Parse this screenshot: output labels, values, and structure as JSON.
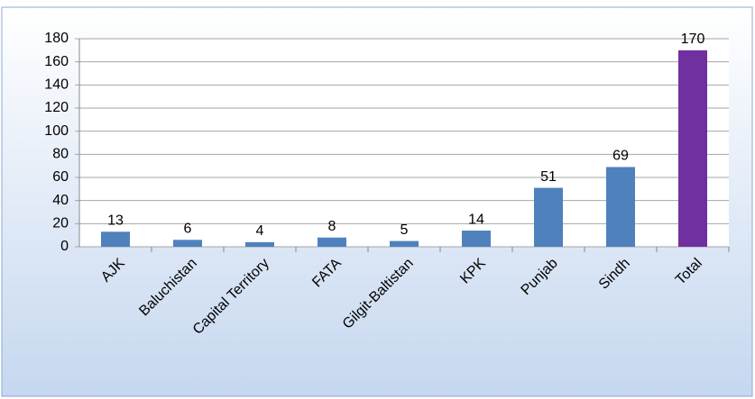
{
  "chart_data": {
    "type": "bar",
    "categories": [
      "AJK",
      "Baluchistan",
      "Capital Territory",
      "FATA",
      "Gilgit-Baltistan",
      "KPK",
      "Punjab",
      "Sindh",
      "Total"
    ],
    "values": [
      13,
      6,
      4,
      8,
      5,
      14,
      51,
      69,
      170
    ],
    "colors": [
      "#4f81bd",
      "#4f81bd",
      "#4f81bd",
      "#4f81bd",
      "#4f81bd",
      "#4f81bd",
      "#4f81bd",
      "#4f81bd",
      "#7030a0"
    ],
    "ylim": [
      0,
      180
    ],
    "yticks": [
      0,
      20,
      40,
      60,
      80,
      100,
      120,
      140,
      160,
      180
    ],
    "grid": true
  }
}
